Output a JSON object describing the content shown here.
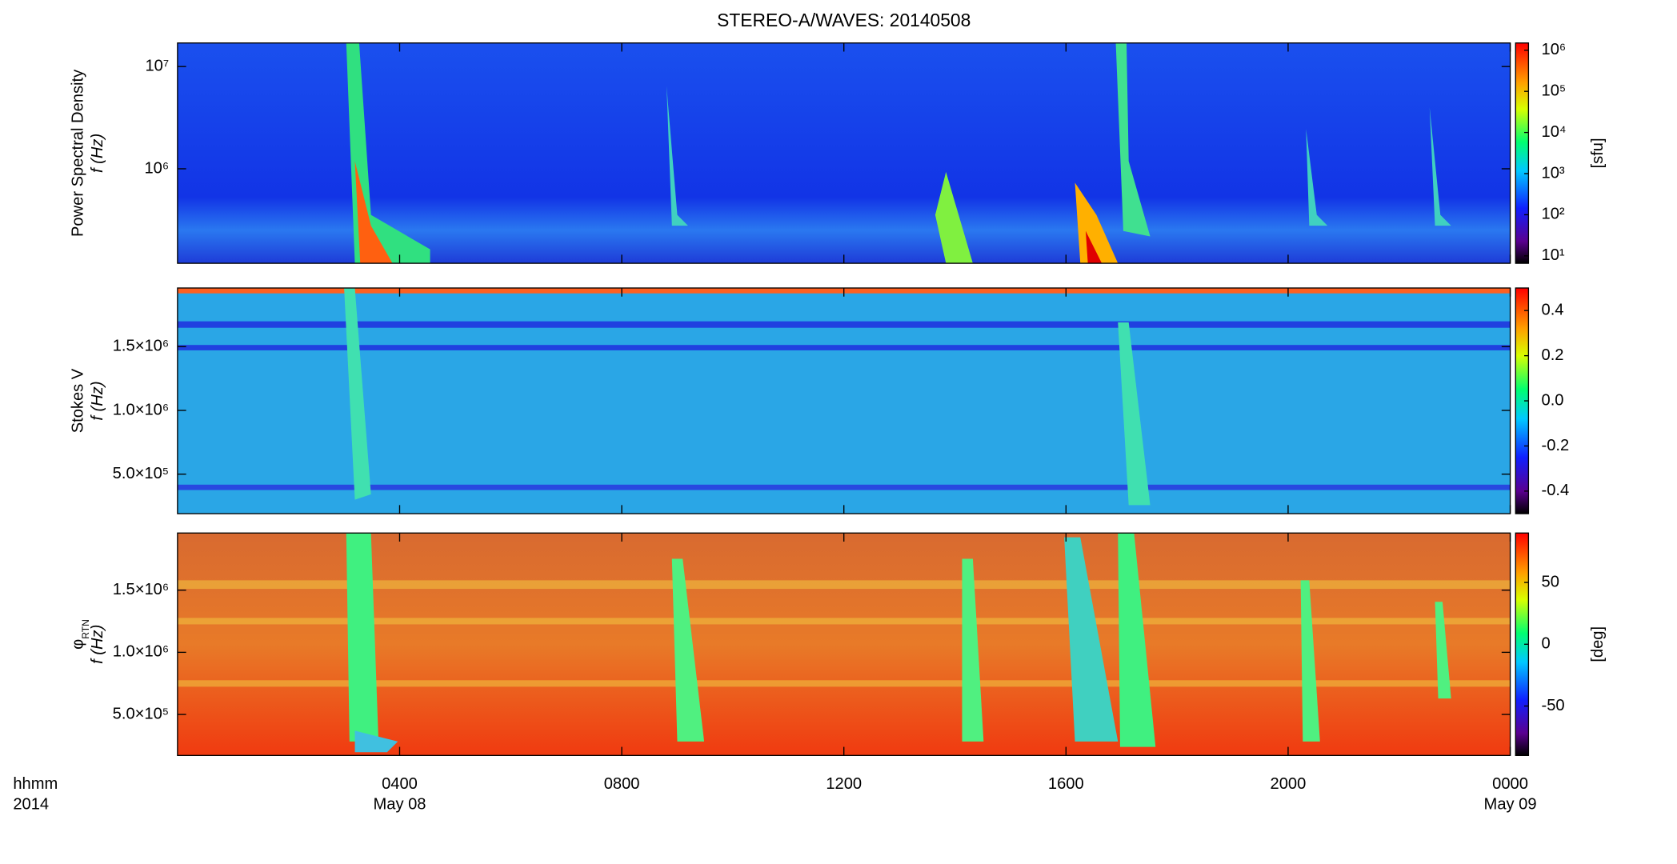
{
  "chart_data": [
    {
      "type": "heatmap",
      "title": "STEREO-A/WAVES: 20140508",
      "ylabel": [
        "Power Spectral Density",
        "f (Hz)"
      ],
      "ylim": [
        119000,
        17000000
      ],
      "log_y": true,
      "yticks": [
        {
          "value": 1000000,
          "label": "10⁶"
        },
        {
          "value": 10000000,
          "label": "10⁷"
        }
      ],
      "colorbar": {
        "lim": [
          6.6,
          1500000
        ],
        "log": true,
        "label": "[sfu]",
        "ticks": [
          {
            "value": 10,
            "label": "10¹"
          },
          {
            "value": 100,
            "label": "10²"
          },
          {
            "value": 1000,
            "label": "10³"
          },
          {
            "value": 10000,
            "label": "10⁴"
          },
          {
            "value": 100000,
            "label": "10⁵"
          },
          {
            "value": 1000000,
            "label": "10⁶"
          }
        ]
      }
    },
    {
      "type": "heatmap",
      "ylabel": [
        "Stokes V",
        "f (Hz)"
      ],
      "ylim": [
        190000,
        1960000
      ],
      "yticks": [
        {
          "value": 500000,
          "label": "5.0×10⁵"
        },
        {
          "value": 1000000,
          "label": "1.0×10⁶"
        },
        {
          "value": 1500000,
          "label": "1.5×10⁶"
        }
      ],
      "colorbar": {
        "lim": [
          -0.5,
          0.5
        ],
        "ticks": [
          -0.4,
          -0.2,
          {
            "value": 0,
            "label": "0.0"
          },
          0.2,
          0.4
        ]
      }
    },
    {
      "type": "heatmap",
      "ylabel": [
        "φ",
        "f (Hz)"
      ],
      "ylabel_subscript": "RTN",
      "ylim": [
        170000,
        1960000
      ],
      "yticks": [
        {
          "value": 500000,
          "label": "5.0×10⁵"
        },
        {
          "value": 1000000,
          "label": "1.0×10⁶"
        },
        {
          "value": 1500000,
          "label": "1.5×10⁶"
        }
      ],
      "colorbar": {
        "lim": [
          -90,
          90
        ],
        "label": "[deg]",
        "ticks": [
          -50,
          0,
          50
        ]
      },
      "xlim": [
        0,
        24
      ],
      "xticks": [
        {
          "value": 4,
          "label": "0400"
        },
        {
          "value": 8,
          "label": "0800"
        },
        {
          "value": 12,
          "label": "1200"
        },
        {
          "value": 16,
          "label": "1600"
        },
        {
          "value": 20,
          "label": "2000"
        },
        {
          "value": 24,
          "label": "0000"
        }
      ],
      "xdates": [
        {
          "value": 4,
          "label": "May 08"
        },
        {
          "value": 24,
          "label": "May 09"
        }
      ],
      "xaxis_labels": [
        "hhmm",
        "2014"
      ]
    }
  ]
}
